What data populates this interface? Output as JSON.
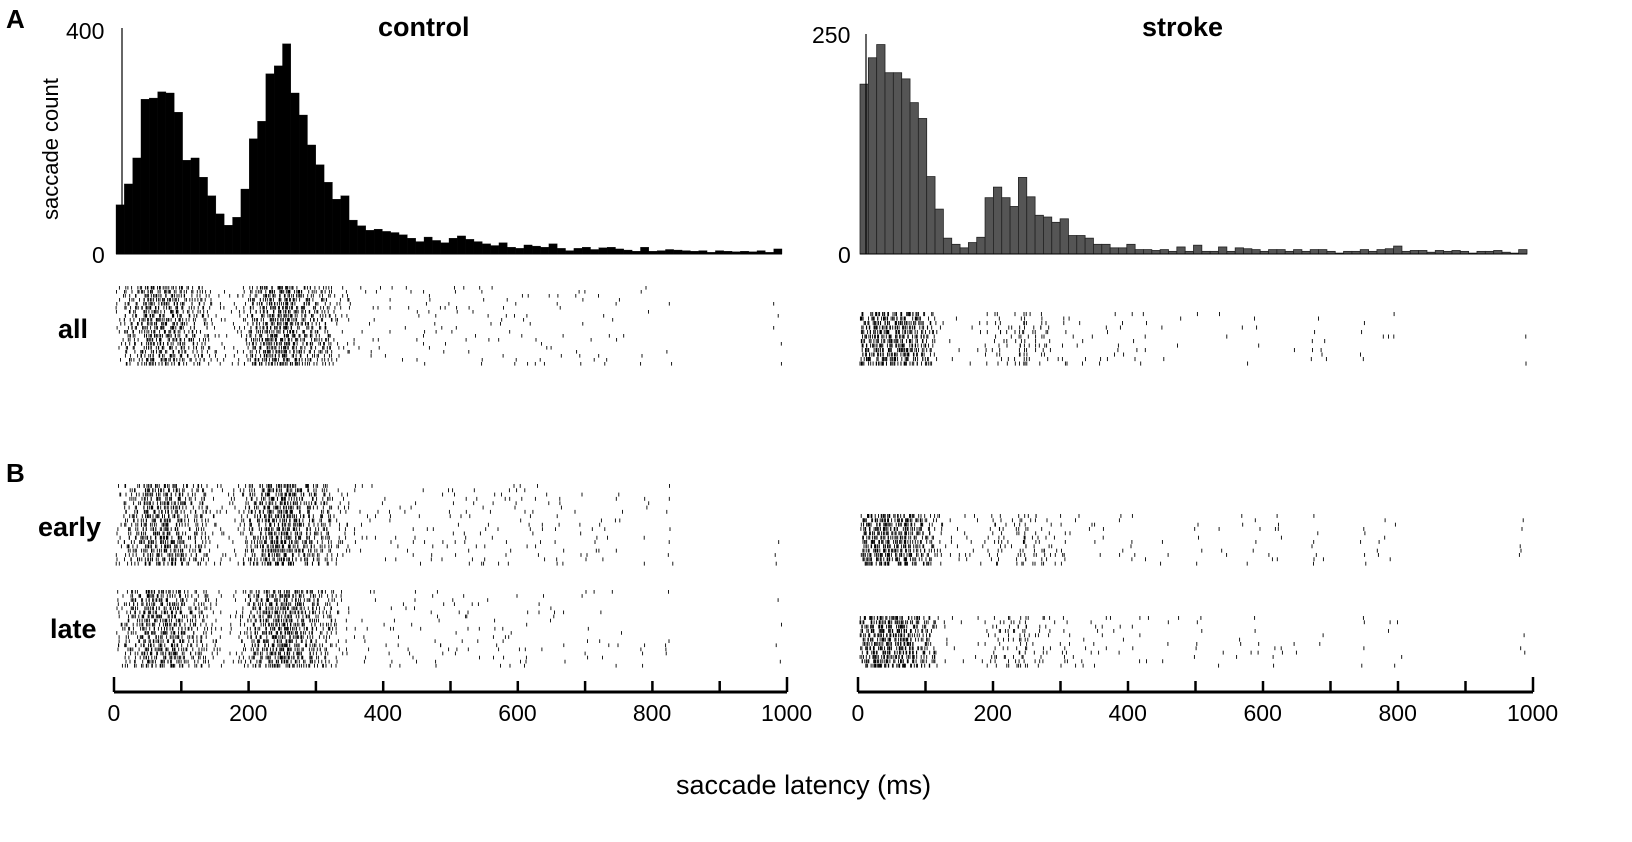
{
  "figure": {
    "panel_a_letter": "A",
    "panel_b_letter": "B",
    "xlabel": "saccade latency (ms)",
    "ylabel": "saccade count",
    "row_labels": {
      "all": "all",
      "early": "early",
      "late": "late"
    },
    "colors": {
      "control_bar": "#000000",
      "stroke_bar": "#555555",
      "stroke_edge": "#222222",
      "raster": "#000000"
    }
  },
  "panels": {
    "control": {
      "title": "control",
      "ymax_label": "400",
      "ymin_label": "0",
      "x_ticks": [
        "0",
        "200",
        "400",
        "600",
        "800",
        "1000"
      ]
    },
    "stroke": {
      "title": "stroke",
      "ymax_label": "250",
      "ymin_label": "0",
      "x_ticks": [
        "0",
        "200",
        "400",
        "600",
        "800",
        "1000"
      ]
    }
  },
  "chart_data": [
    {
      "type": "bar",
      "title": "control",
      "xlabel": "saccade latency (ms)",
      "ylabel": "saccade count",
      "xlim": [
        0,
        1000
      ],
      "ylim": [
        0,
        400
      ],
      "bin_width_ms": 12.5,
      "grid": false,
      "values": [
        87,
        124,
        170,
        274,
        276,
        287,
        285,
        251,
        166,
        170,
        136,
        103,
        71,
        51,
        65,
        115,
        204,
        235,
        319,
        333,
        372,
        285,
        246,
        193,
        158,
        127,
        97,
        103,
        60,
        50,
        42,
        44,
        40,
        38,
        34,
        28,
        22,
        30,
        24,
        20,
        28,
        32,
        26,
        22,
        18,
        15,
        20,
        12,
        10,
        16,
        14,
        12,
        18,
        10,
        6,
        10,
        12,
        8,
        11,
        12,
        9,
        7,
        5,
        12,
        5,
        6,
        8,
        7,
        6,
        5,
        6,
        3,
        6,
        5,
        4,
        5,
        4,
        6,
        3,
        9
      ],
      "raster": {
        "rows": {
          "all": 20,
          "early": 19,
          "late": 19
        }
      }
    },
    {
      "type": "bar",
      "title": "stroke",
      "xlabel": "saccade latency (ms)",
      "ylabel": "saccade count",
      "xlim": [
        0,
        1000
      ],
      "ylim": [
        0,
        250
      ],
      "bin_width_ms": 12.5,
      "grid": false,
      "values": [
        193,
        223,
        238,
        206,
        206,
        199,
        172,
        154,
        88,
        51,
        18,
        11,
        7,
        13,
        19,
        64,
        76,
        64,
        54,
        87,
        65,
        44,
        42,
        36,
        40,
        21,
        21,
        18,
        11,
        11,
        7,
        7,
        11,
        5,
        5,
        4,
        5,
        3,
        8,
        3,
        10,
        3,
        3,
        8,
        3,
        7,
        6,
        5,
        3,
        5,
        5,
        3,
        5,
        3,
        5,
        5,
        3,
        1,
        3,
        3,
        5,
        3,
        5,
        6,
        9,
        3,
        4,
        4,
        2,
        4,
        3,
        4,
        3,
        1,
        3,
        3,
        4,
        2,
        1,
        5
      ],
      "raster": {
        "rows": {
          "all": 12,
          "early": 12,
          "late": 12
        }
      }
    }
  ]
}
